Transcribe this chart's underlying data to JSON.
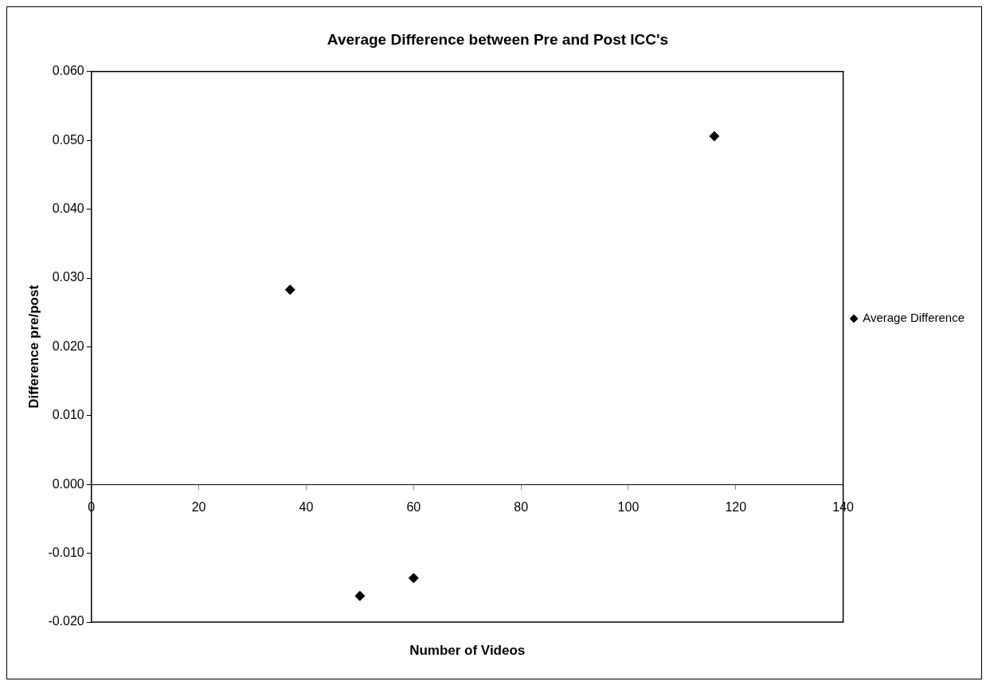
{
  "chart_data": {
    "type": "scatter",
    "title": "Average Difference between Pre and Post ICC's",
    "xlabel": "Number of Videos",
    "ylabel": "Difference pre/post",
    "series": [
      {
        "name": "Average Difference",
        "color": "#000000",
        "x": [
          37,
          50,
          60,
          116
        ],
        "values": [
          0.0283,
          -0.0162,
          -0.0136,
          0.0506
        ]
      }
    ],
    "xlim": [
      0,
      140
    ],
    "xticks": [
      0,
      20,
      40,
      60,
      80,
      100,
      120,
      140
    ],
    "ylim": [
      -0.02,
      0.06
    ],
    "yticks": [
      {
        "value": -0.02,
        "label": "-0.020"
      },
      {
        "value": -0.01,
        "label": "-0.010"
      },
      {
        "value": 0,
        "label": "0.000"
      },
      {
        "value": 0.01,
        "label": "0.010"
      },
      {
        "value": 0.02,
        "label": "0.020"
      },
      {
        "value": 0.03,
        "label": "0.030"
      },
      {
        "value": 0.04,
        "label": "0.040"
      },
      {
        "value": 0.05,
        "label": "0.050"
      },
      {
        "value": 0.06,
        "label": "0.060"
      }
    ],
    "legend": "right",
    "marker": "diamond"
  }
}
